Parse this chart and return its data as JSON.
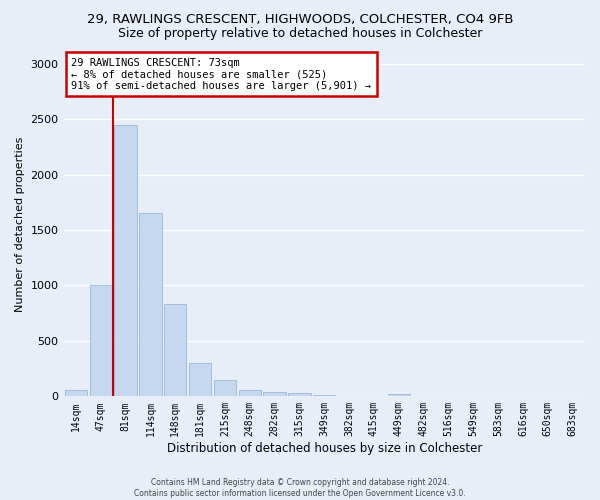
{
  "title_line1": "29, RAWLINGS CRESCENT, HIGHWOODS, COLCHESTER, CO4 9FB",
  "title_line2": "Size of property relative to detached houses in Colchester",
  "xlabel": "Distribution of detached houses by size in Colchester",
  "ylabel": "Number of detached properties",
  "categories": [
    "14sqm",
    "47sqm",
    "81sqm",
    "114sqm",
    "148sqm",
    "181sqm",
    "215sqm",
    "248sqm",
    "282sqm",
    "315sqm",
    "349sqm",
    "382sqm",
    "415sqm",
    "449sqm",
    "482sqm",
    "516sqm",
    "549sqm",
    "583sqm",
    "616sqm",
    "650sqm",
    "683sqm"
  ],
  "values": [
    55,
    1000,
    2450,
    1650,
    830,
    300,
    150,
    55,
    40,
    30,
    15,
    0,
    0,
    25,
    0,
    0,
    0,
    0,
    0,
    0,
    0
  ],
  "bar_color": "#c5d8f0",
  "bar_edgecolor": "#9ab8d8",
  "property_line_label": "29 RAWLINGS CRESCENT: 73sqm",
  "annotation_line2": "← 8% of detached houses are smaller (525)",
  "annotation_line3": "91% of semi-detached houses are larger (5,901) →",
  "annotation_box_color": "#ffffff",
  "annotation_box_edgecolor": "#cc0000",
  "vline_color": "#cc0000",
  "ylim": [
    0,
    3100
  ],
  "yticks": [
    0,
    500,
    1000,
    1500,
    2000,
    2500,
    3000
  ],
  "footer_line1": "Contains HM Land Registry data © Crown copyright and database right 2024.",
  "footer_line2": "Contains public sector information licensed under the Open Government Licence v3.0.",
  "background_color": "#e8eef8",
  "grid_color": "#ffffff",
  "title1_fontsize": 9.5,
  "title2_fontsize": 9,
  "annot_fontsize": 7.5,
  "ylabel_fontsize": 8,
  "xlabel_fontsize": 8.5,
  "tick_fontsize": 7
}
